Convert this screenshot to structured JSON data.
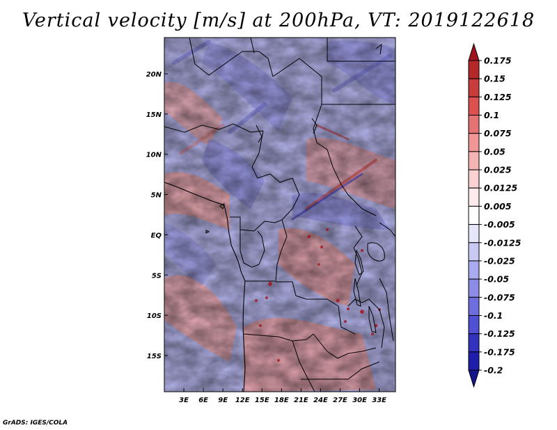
{
  "title": "Vertical velocity [m/s] at 200hPa, VT: 2019122618",
  "credit": "GrADS: IGES/COLA",
  "map": {
    "lon_range": [
      0,
      35.5
    ],
    "lat_range": [
      -19.5,
      24.5
    ],
    "lon_ticks": [
      {
        "value": 3,
        "label": "3E"
      },
      {
        "value": 6,
        "label": "6E"
      },
      {
        "value": 9,
        "label": "9E"
      },
      {
        "value": 12,
        "label": "12E"
      },
      {
        "value": 15,
        "label": "15E"
      },
      {
        "value": 18,
        "label": "18E"
      },
      {
        "value": 21,
        "label": "21E"
      },
      {
        "value": 24,
        "label": "24E"
      },
      {
        "value": 27,
        "label": "27E"
      },
      {
        "value": 30,
        "label": "30E"
      },
      {
        "value": 33,
        "label": "33E"
      }
    ],
    "lat_ticks": [
      {
        "value": 20,
        "label": "20N"
      },
      {
        "value": 15,
        "label": "15N"
      },
      {
        "value": 10,
        "label": "10N"
      },
      {
        "value": 5,
        "label": "5N"
      },
      {
        "value": 0,
        "label": "EQ"
      },
      {
        "value": -5,
        "label": "5S"
      },
      {
        "value": -10,
        "label": "10S"
      },
      {
        "value": -15,
        "label": "15S"
      }
    ]
  },
  "colorbar": {
    "labels": [
      "0.175",
      "0.15",
      "0.125",
      "0.1",
      "0.075",
      "0.05",
      "0.025",
      "0.0125",
      "0.005",
      "-0.005",
      "-0.0125",
      "-0.025",
      "-0.05",
      "-0.075",
      "-0.1",
      "-0.125",
      "-0.175",
      "-0.2"
    ],
    "colors": [
      "#a0141e",
      "#b4282a",
      "#c83c3c",
      "#dc5050",
      "#e67373",
      "#f09696",
      "#f5b4b4",
      "#fad2d2",
      "#fdeaea",
      "#ffffff",
      "#e6e6fa",
      "#c8c8f5",
      "#aaaaf0",
      "#8c8ce6",
      "#6e6edc",
      "#5050d2",
      "#3232be",
      "#1e1eaa",
      "#14148c"
    ]
  }
}
